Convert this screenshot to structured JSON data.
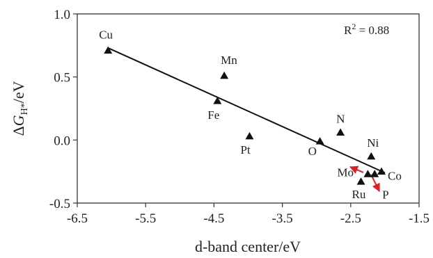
{
  "chart_data": {
    "type": "scatter",
    "title": "",
    "xlabel": "d-band center/eV",
    "ylabel_parts": {
      "prefix": "Δ",
      "var": "G",
      "sub": "H*",
      "suffix": "/eV"
    },
    "xlim": [
      -6.5,
      -1.5
    ],
    "ylim": [
      -0.5,
      1.0
    ],
    "x_ticks": [
      "-6.5",
      "-5.5",
      "-4.5",
      "-3.5",
      "-2.5",
      "-1.5"
    ],
    "y_ticks": [
      "-0.5",
      "0.0",
      "0.5",
      "1.0"
    ],
    "grid": false,
    "points": [
      {
        "label": "Cu",
        "x": -6.05,
        "y": 0.71
      },
      {
        "label": "Mn",
        "x": -4.35,
        "y": 0.51
      },
      {
        "label": "Fe",
        "x": -4.45,
        "y": 0.31
      },
      {
        "label": "Pt",
        "x": -3.98,
        "y": 0.03
      },
      {
        "label": "O",
        "x": -2.95,
        "y": -0.01
      },
      {
        "label": "N",
        "x": -2.65,
        "y": 0.06
      },
      {
        "label": "Ni",
        "x": -2.2,
        "y": -0.13
      },
      {
        "label": "Mo",
        "x": -2.25,
        "y": -0.27
      },
      {
        "label": "Co",
        "x": -2.05,
        "y": -0.25
      },
      {
        "label": "Ru",
        "x": -2.35,
        "y": -0.33
      },
      {
        "label": "P",
        "x": -2.15,
        "y": -0.27
      }
    ],
    "fit_line": {
      "x": [
        -6.05,
        -2.0
      ],
      "y": [
        0.73,
        -0.26
      ]
    },
    "annotation": {
      "base": "R",
      "sup": "2",
      "rest": " = 0.88"
    },
    "colors": {
      "marker": "#111111",
      "line": "#111111",
      "arrow": "#e02020"
    }
  }
}
